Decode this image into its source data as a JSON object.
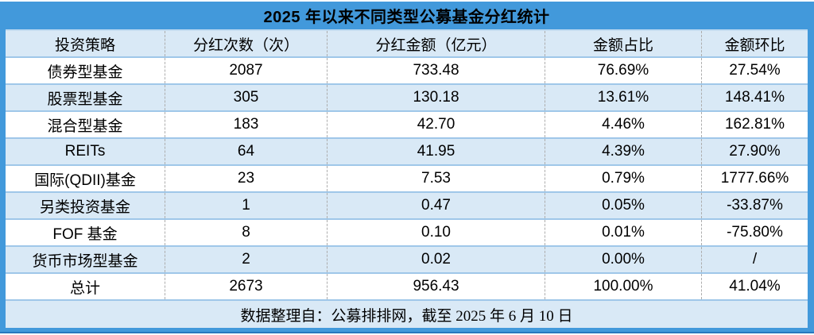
{
  "chart_data": {
    "type": "table",
    "title": "2025 年以来不同类型公募基金分红统计",
    "columns": [
      "投资策略",
      "分红次数（次）",
      "分红金额（亿元）",
      "金额占比",
      "金额环比"
    ],
    "rows": [
      [
        "债券型基金",
        "2087",
        "733.48",
        "76.69%",
        "27.54%"
      ],
      [
        "股票型基金",
        "305",
        "130.18",
        "13.61%",
        "148.41%"
      ],
      [
        "混合型基金",
        "183",
        "42.70",
        "4.46%",
        "162.81%"
      ],
      [
        "REITs",
        "64",
        "41.95",
        "4.39%",
        "27.90%"
      ],
      [
        "国际(QDII)基金",
        "23",
        "7.53",
        "0.79%",
        "1777.66%"
      ],
      [
        "另类投资基金",
        "1",
        "0.47",
        "0.05%",
        "-33.87%"
      ],
      [
        "FOF 基金",
        "8",
        "0.10",
        "0.01%",
        "-75.80%"
      ],
      [
        "货币市场型基金",
        "2",
        "0.02",
        "0.00%",
        "/"
      ],
      [
        "总计",
        "2673",
        "956.43",
        "100.00%",
        "41.04%"
      ]
    ],
    "footnote": "数据整理自：公募排排网，截至 2025 年 6 月 10 日",
    "layout": {
      "alternating_row_shading": true,
      "column_dividers": "dashed",
      "title_position": "top-banner"
    }
  },
  "colors": {
    "banner_blue": "#4299db",
    "frame_bottom_edge": "#2878be",
    "row_shade_blue": "#d9e9f6",
    "row_separator_blue": "#9fc7e9",
    "column_divider_gray": "#adadad",
    "text": "#000000"
  }
}
